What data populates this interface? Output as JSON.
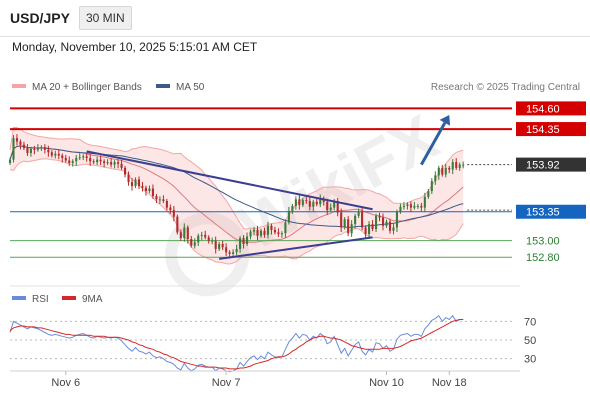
{
  "header": {
    "symbol": "USD/JPY",
    "timeframe": "30 MIN",
    "datetime": "Monday, November 10, 2025 5:15:01 AM CET"
  },
  "legend": {
    "ma_bb": "MA 20 + Bollinger Bands",
    "ma50": "MA 50",
    "credit": "Research © 2025 Trading Central",
    "rsi": "RSI",
    "rsi_ma": "9MA"
  },
  "colors": {
    "resistance": "#d40000",
    "support_blue": "#1565c0",
    "support_green": "#5aa55a",
    "trendline": "#3b3f8f",
    "arrow": "#2f5fa0",
    "bollinger": "#f4a6a6",
    "ma50": "#3d5a8a",
    "candle_up": "#3a7a3a",
    "candle_down": "#b22a2a",
    "rsi": "#6a8cd8",
    "rsi_ma": "#d22a2a"
  },
  "chart_data": [
    {
      "type": "candlestick",
      "ylim": [
        152.5,
        154.75
      ],
      "xlim": [
        0,
        144
      ],
      "x_ticks": [
        {
          "x": 16,
          "label": "Nov 6"
        },
        {
          "x": 62,
          "label": "Nov 7"
        },
        {
          "x": 108,
          "label": "Nov 10"
        },
        {
          "x": 126,
          "label": "Nov 18"
        }
      ],
      "levels": [
        {
          "value": 154.6,
          "label": "154.60",
          "kind": "resistance"
        },
        {
          "value": 154.35,
          "label": "154.35",
          "kind": "resistance"
        },
        {
          "value": 153.92,
          "label": "153.92",
          "kind": "last"
        },
        {
          "value": 153.35,
          "label": "153.35",
          "kind": "support_blue"
        },
        {
          "value": 153.0,
          "label": "153.00",
          "kind": "support_green"
        },
        {
          "value": 152.8,
          "label": "152.80",
          "kind": "support_green"
        }
      ],
      "trendlines": [
        {
          "x1": 22,
          "y1": 154.08,
          "x2": 104,
          "y2": 153.38
        },
        {
          "x1": 60,
          "y1": 152.78,
          "x2": 104,
          "y2": 153.04
        }
      ],
      "forecast_arrow": {
        "x1": 118,
        "y1": 153.92,
        "x2": 126,
        "y2": 154.52
      },
      "close": [
        153.98,
        154.24,
        154.2,
        154.16,
        154.12,
        154.06,
        154.11,
        154.1,
        154.12,
        154.13,
        154.1,
        154.07,
        154.03,
        154.05,
        154.03,
        154.0,
        153.97,
        153.94,
        153.96,
        154.0,
        154.01,
        154.02,
        154.0,
        153.96,
        153.95,
        153.98,
        153.96,
        153.94,
        153.95,
        153.92,
        153.95,
        153.93,
        153.88,
        153.8,
        153.71,
        153.66,
        153.74,
        153.66,
        153.64,
        153.6,
        153.63,
        153.54,
        153.5,
        153.5,
        153.48,
        153.4,
        153.37,
        153.29,
        153.1,
        153.03,
        153.16,
        153.02,
        152.94,
        152.98,
        153.06,
        153.07,
        153.04,
        153.0,
        153.0,
        152.9,
        152.96,
        152.92,
        152.86,
        152.84,
        152.86,
        152.9,
        153.03,
        152.96,
        153.05,
        153.11,
        153.13,
        153.06,
        153.12,
        153.07,
        153.18,
        153.13,
        153.1,
        153.08,
        153.09,
        153.22,
        153.36,
        153.42,
        153.5,
        153.43,
        153.49,
        153.48,
        153.41,
        153.47,
        153.44,
        153.51,
        153.47,
        153.37,
        153.4,
        153.48,
        153.34,
        153.16,
        153.26,
        153.09,
        153.2,
        153.3,
        153.35,
        153.16,
        153.08,
        153.2,
        153.14,
        153.3,
        153.28,
        153.18,
        153.23,
        153.12,
        153.16,
        153.35,
        153.41,
        153.42,
        153.44,
        153.4,
        153.42,
        153.42,
        153.4,
        153.53,
        153.6,
        153.72,
        153.79,
        153.88,
        153.8,
        153.88,
        153.86,
        153.95,
        153.88,
        153.92,
        153.92
      ],
      "x_offset": 0
    },
    {
      "type": "line",
      "title": "RSI",
      "ylim": [
        20,
        80
      ],
      "y_ticks": [
        70,
        50,
        30
      ],
      "series": [
        {
          "name": "RSI",
          "values": [
            58,
            70,
            68,
            66,
            64,
            62,
            64,
            63,
            62,
            60,
            58,
            56,
            55,
            56,
            55,
            54,
            53,
            52,
            53,
            55,
            56,
            57,
            55,
            53,
            52,
            54,
            53,
            52,
            53,
            52,
            53,
            52,
            49,
            45,
            41,
            38,
            42,
            38,
            37,
            35,
            37,
            33,
            31,
            32,
            30,
            27,
            26,
            24,
            20,
            18,
            25,
            20,
            17,
            19,
            23,
            24,
            22,
            21,
            21,
            17,
            20,
            19,
            17,
            16,
            17,
            19,
            26,
            22,
            27,
            31,
            33,
            29,
            33,
            30,
            37,
            34,
            32,
            31,
            32,
            40,
            48,
            52,
            57,
            52,
            56,
            55,
            50,
            54,
            52,
            57,
            54,
            46,
            48,
            54,
            45,
            36,
            41,
            33,
            39,
            45,
            48,
            38,
            34,
            40,
            37,
            47,
            46,
            41,
            44,
            38,
            40,
            51,
            55,
            56,
            57,
            54,
            56,
            56,
            54,
            62,
            66,
            71,
            73,
            76,
            70,
            74,
            72,
            76,
            70,
            72,
            72
          ]
        },
        {
          "name": "9MA",
          "values": [
            60,
            63,
            64,
            65,
            65,
            64,
            64,
            64,
            63,
            63,
            62,
            61,
            60,
            59,
            58,
            57,
            56,
            56,
            55,
            55,
            55,
            55,
            55,
            55,
            54,
            54,
            54,
            54,
            53,
            53,
            53,
            53,
            52,
            51,
            50,
            48,
            47,
            45,
            44,
            42,
            41,
            40,
            38,
            37,
            35,
            34,
            32,
            31,
            29,
            27,
            26,
            25,
            24,
            23,
            22,
            22,
            21,
            21,
            21,
            21,
            20,
            20,
            20,
            19,
            19,
            19,
            20,
            20,
            21,
            22,
            24,
            25,
            26,
            27,
            28,
            30,
            31,
            32,
            32,
            33,
            35,
            38,
            40,
            43,
            45,
            48,
            50,
            52,
            53,
            54,
            54,
            53,
            52,
            52,
            51,
            50,
            48,
            46,
            44,
            43,
            42,
            41,
            40,
            40,
            40,
            40,
            40,
            41,
            41,
            41,
            41,
            42,
            43,
            45,
            47,
            49,
            50,
            51,
            52,
            54,
            56,
            58,
            60,
            62,
            64,
            66,
            68,
            70,
            71,
            72,
            72
          ]
        }
      ],
      "x_offset": 0
    }
  ]
}
